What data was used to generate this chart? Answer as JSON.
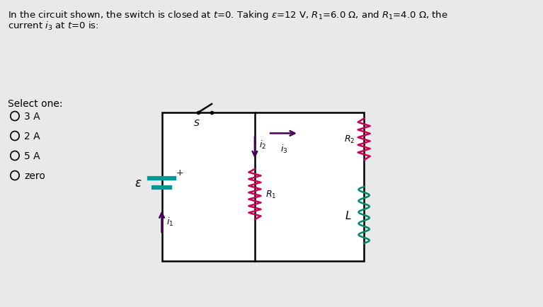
{
  "bg_color": "#e9e9e9",
  "circuit_bg": "#ffffff",
  "title_line1": "In the circuit shown, the switch is closed at $t$=0. Taking $\\varepsilon$=12 V, $R_1$=6.0 Ω, and $R_1$=4.0 Ω, the",
  "title_line2": "current $i_3$ at $t$=0 is:",
  "select_text": "Select one:",
  "options": [
    "3 A",
    "2 A",
    "5 A",
    "zero"
  ],
  "resistor_color": "#cc0055",
  "inductor_color": "#008866",
  "arrow_color": "#440055",
  "wire_color": "#000000",
  "battery_color": "#009999",
  "switch_color": "#222222"
}
